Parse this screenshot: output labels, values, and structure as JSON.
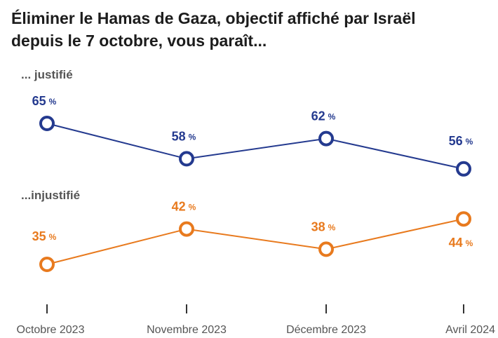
{
  "title": {
    "line1": "Éliminer le Hamas de Gaza, objectif affiché par Israël",
    "line2": "depuis le 7 octobre, vous paraît..."
  },
  "chart_data": {
    "type": "line",
    "categories": [
      "Octobre 2023",
      "Novembre 2023",
      "Décembre 2023",
      "Avril 2024"
    ],
    "series": [
      {
        "name": "... justifié",
        "values": [
          65,
          58,
          62,
          56
        ],
        "color": "#243a8f"
      },
      {
        "name": "...injustifié",
        "values": [
          35,
          42,
          38,
          44
        ],
        "color": "#e87a1e"
      }
    ],
    "value_suffix": "%",
    "grid": false,
    "legend": "inline-left"
  }
}
